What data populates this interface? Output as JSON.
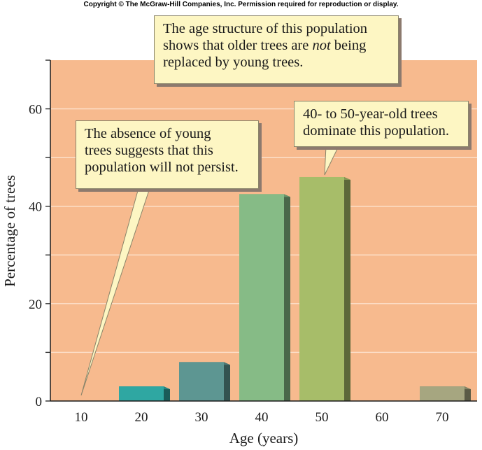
{
  "copyright": "Copyright © The McGraw-Hill Companies, Inc. Permission required for reproduction or display.",
  "colors": {
    "plot_background": "#f7ba8e",
    "gridline": "#fde3cf",
    "bars": [
      "#2fa7a2",
      "#5d9692",
      "#86bb86",
      "#a7bd69",
      "#a6a680"
    ]
  },
  "chart_data": {
    "type": "bar",
    "title": "",
    "xlabel": "Age (years)",
    "ylabel": "Percentage of trees",
    "categories": [
      "10",
      "20",
      "30",
      "40",
      "50",
      "60",
      "70"
    ],
    "values": [
      0,
      3,
      8,
      42.5,
      46,
      0,
      3
    ],
    "ylim": [
      0,
      70
    ],
    "yticks": [
      "0",
      "20",
      "40",
      "60"
    ],
    "ytick_values": [
      0,
      20,
      40,
      60
    ],
    "grid": true
  },
  "callouts": {
    "age_structure": {
      "before": "The age structure of this population\nshows that older trees are ",
      "emphasis": "not",
      "after": " being\nreplaced by young trees."
    },
    "absence": "The absence of young\ntrees suggests that this\npopulation will not persist.",
    "dominate": "40- to 50-year-old trees\ndominate this population."
  }
}
